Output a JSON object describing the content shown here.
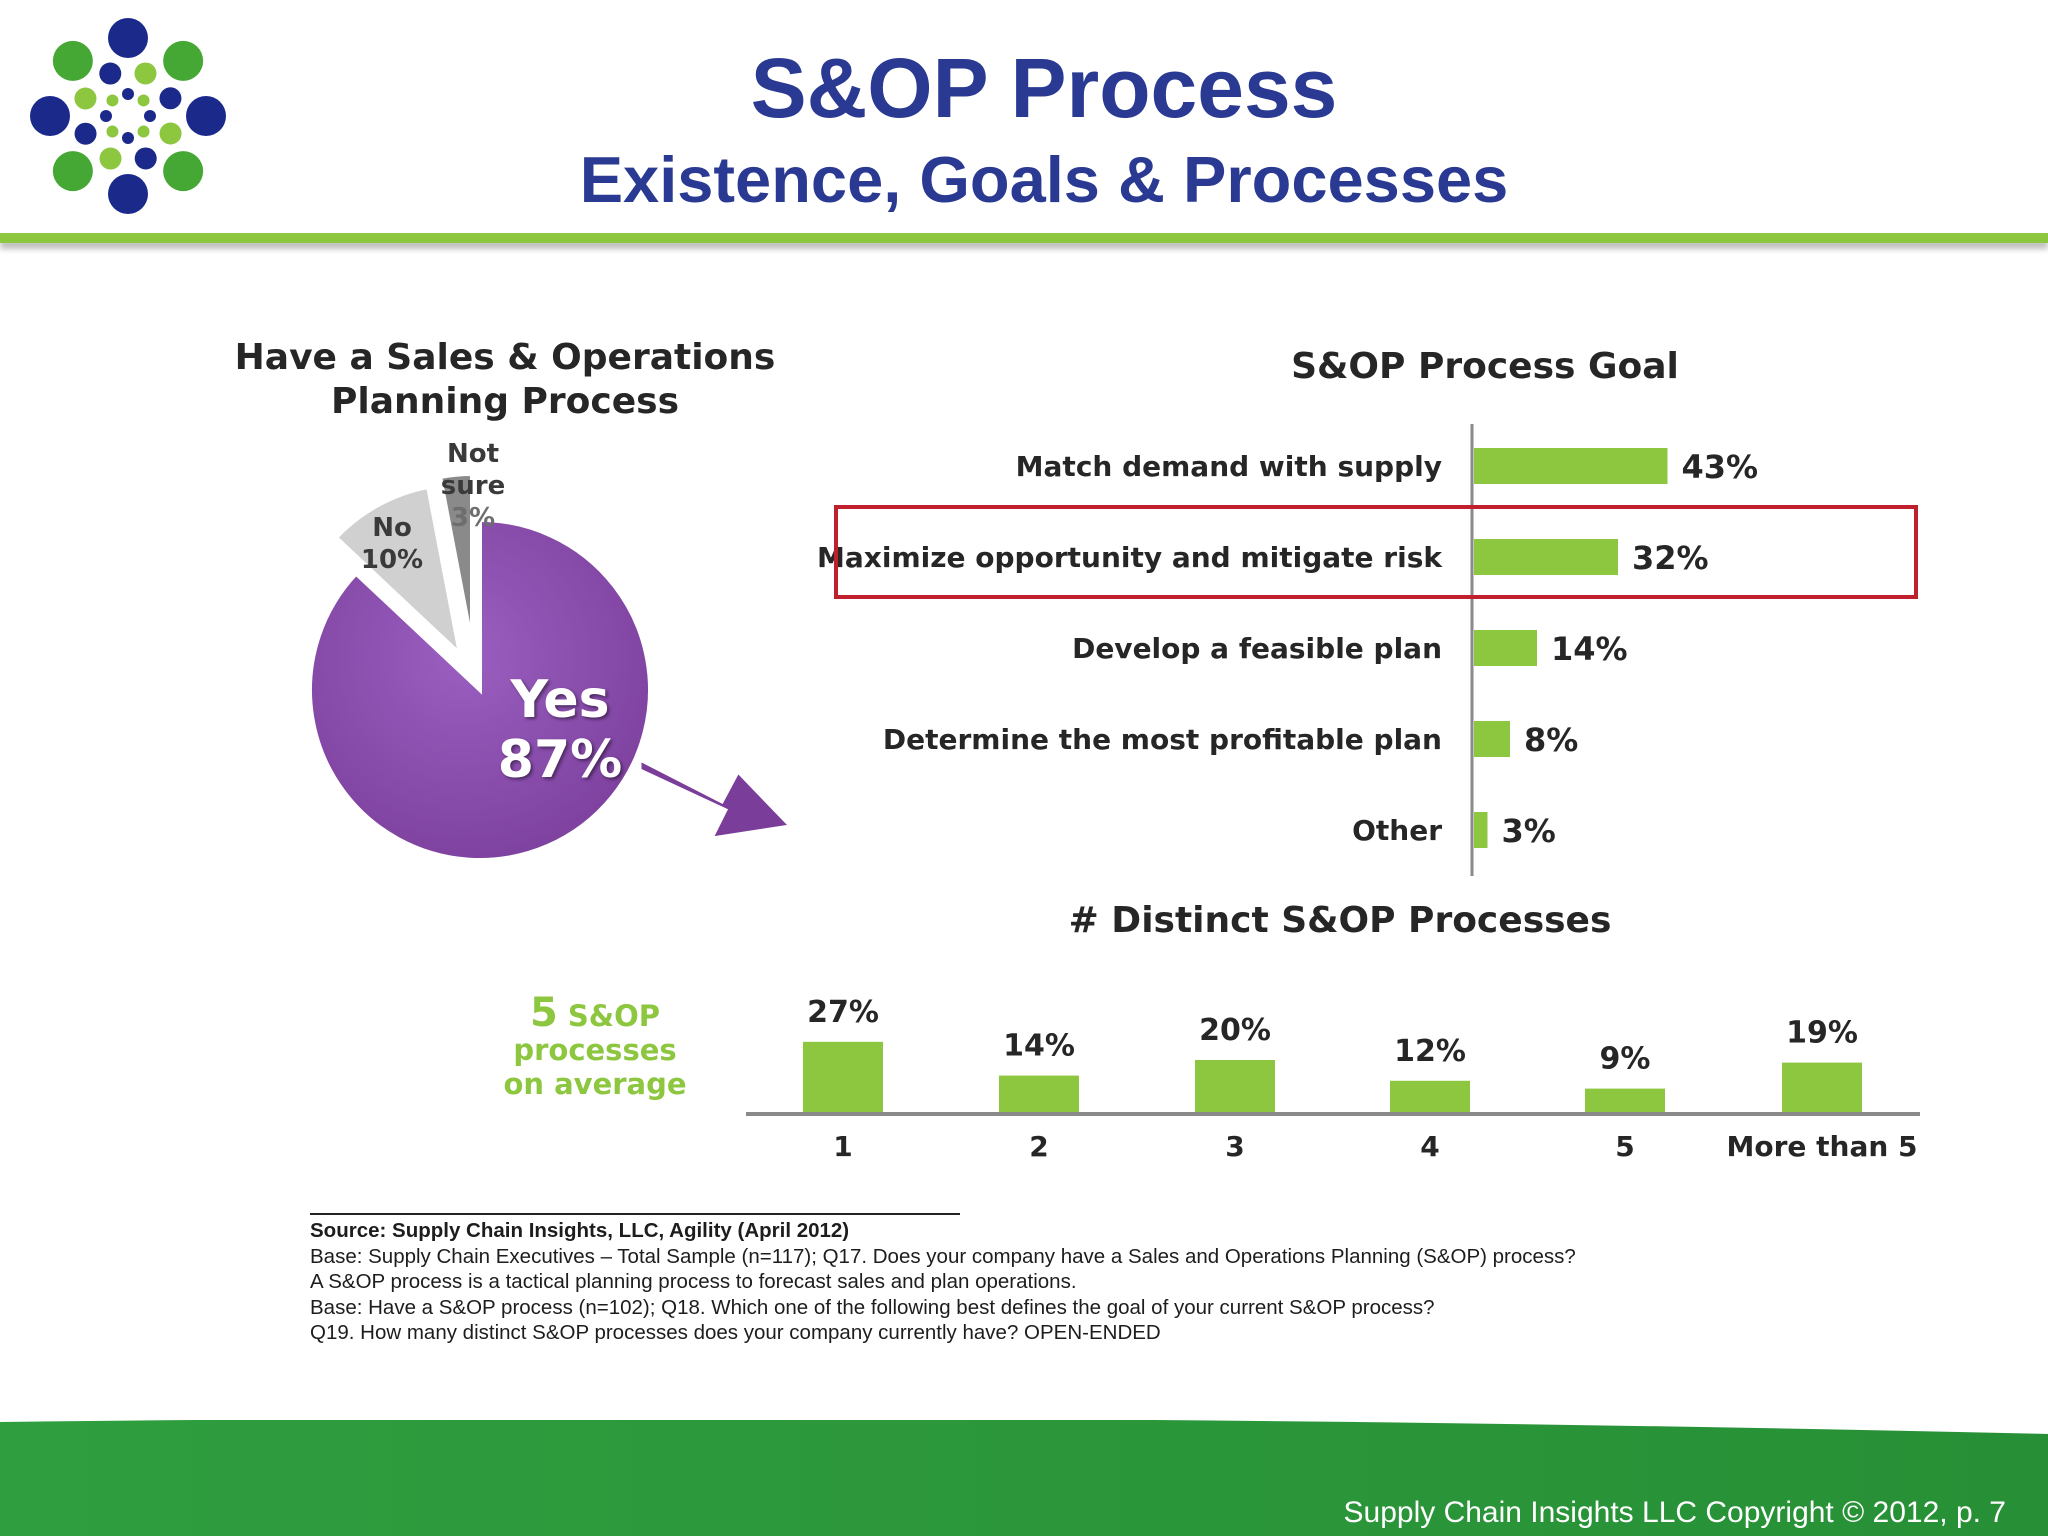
{
  "slide": {
    "title": "S&OP Process",
    "subtitle": "Existence, Goals & Processes",
    "footer": "Supply Chain Insights LLC Copyright © 2012, p. 7",
    "colors": {
      "title": "#2a3a93",
      "accent_green": "#8dc63f",
      "footer_green": "#2e9a3e",
      "pie_yes": "#7a3d9a",
      "highlight_box": "#c0202e"
    }
  },
  "logo": {
    "icon": "dotted-circle-logo-icon"
  },
  "chart_data": [
    {
      "type": "pie",
      "title": "Have a Sales & Operations Planning Process",
      "slices": [
        {
          "label": "Yes",
          "value": 87,
          "display": "87%",
          "color": "#7a3d9a"
        },
        {
          "label": "No",
          "value": 10,
          "display": "10%",
          "color": "#d0d0d0"
        },
        {
          "label": "Not sure",
          "value": 3,
          "display": "3%",
          "color": "#8a8a8a"
        }
      ]
    },
    {
      "type": "bar",
      "orientation": "horizontal",
      "title": "S&OP Process Goal",
      "categories": [
        "Match demand with supply",
        "Maximize opportunity and mitigate risk",
        "Develop a feasible plan",
        "Determine the most profitable plan",
        "Other"
      ],
      "values": [
        43,
        32,
        14,
        8,
        3
      ],
      "value_labels": [
        "43%",
        "32%",
        "14%",
        "8%",
        "3%"
      ],
      "highlighted": "Maximize opportunity and mitigate risk",
      "xlim": [
        0,
        100
      ],
      "color": "#8dc63f"
    },
    {
      "type": "bar",
      "title": "# Distinct S&OP Processes",
      "categories": [
        "1",
        "2",
        "3",
        "4",
        "5",
        "More than 5"
      ],
      "values": [
        27,
        14,
        20,
        12,
        9,
        19
      ],
      "value_labels": [
        "27%",
        "14%",
        "20%",
        "12%",
        "9%",
        "19%"
      ],
      "ylim": [
        0,
        30
      ],
      "color": "#8dc63f",
      "annotation": {
        "big": "5",
        "rest1": "S&OP",
        "rest2": "processes",
        "rest3": "on average"
      }
    }
  ],
  "source_notes": [
    "Source:  Supply Chain Insights, LLC, Agility (April 2012)",
    "Base:  Supply Chain  Executives – Total Sample (n=117);  Q17. Does your company have a Sales and Operations Planning (S&OP) process?",
    "A S&OP process is a tactical planning process to forecast sales and plan operations.",
    "Base:  Have a S&OP process (n=102); Q18. Which one of the following best defines the goal of your current S&OP process?",
    "Q19. How many distinct S&OP processes does your company currently have? OPEN-ENDED"
  ]
}
